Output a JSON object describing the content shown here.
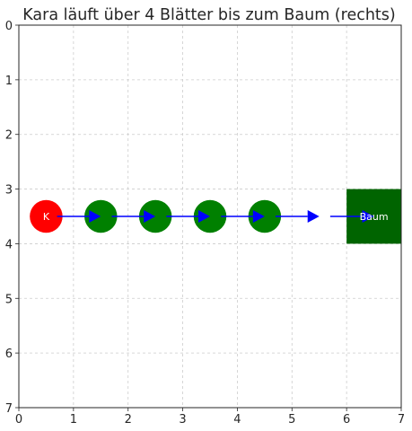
{
  "chart_data": {
    "type": "scatter",
    "title": "Kara läuft über 4 Blätter bis zum Baum (rechts)",
    "xlabel": "",
    "ylabel": "",
    "xlim": [
      0,
      7
    ],
    "ylim": [
      7,
      0
    ],
    "y_inverted": true,
    "grid": true,
    "xticks": [
      "0",
      "1",
      "2",
      "3",
      "4",
      "5",
      "6",
      "7"
    ],
    "yticks": [
      "0",
      "1",
      "2",
      "3",
      "4",
      "5",
      "6",
      "7"
    ],
    "kara": {
      "x": 0.5,
      "y": 3.5,
      "label": "K",
      "color": "#ff0000"
    },
    "leaves": [
      {
        "x": 1.5,
        "y": 3.5
      },
      {
        "x": 2.5,
        "y": 3.5
      },
      {
        "x": 3.5,
        "y": 3.5
      },
      {
        "x": 4.5,
        "y": 3.5
      }
    ],
    "leaf_color": "#008000",
    "tree": {
      "x0": 6,
      "x1": 7,
      "y0": 3,
      "y1": 4,
      "label": "Baum",
      "color": "#006400"
    },
    "path": {
      "color": "#0000ff",
      "arrows": [
        {
          "x_from": 0.7,
          "x_to": 1.5,
          "y": 3.5
        },
        {
          "x_from": 1.7,
          "x_to": 2.5,
          "y": 3.5
        },
        {
          "x_from": 2.7,
          "x_to": 3.5,
          "y": 3.5
        },
        {
          "x_from": 3.7,
          "x_to": 4.5,
          "y": 3.5
        },
        {
          "x_from": 4.7,
          "x_to": 5.5,
          "y": 3.5
        },
        {
          "x_from": 5.7,
          "x_to": 6.5,
          "y": 3.5
        }
      ]
    }
  }
}
